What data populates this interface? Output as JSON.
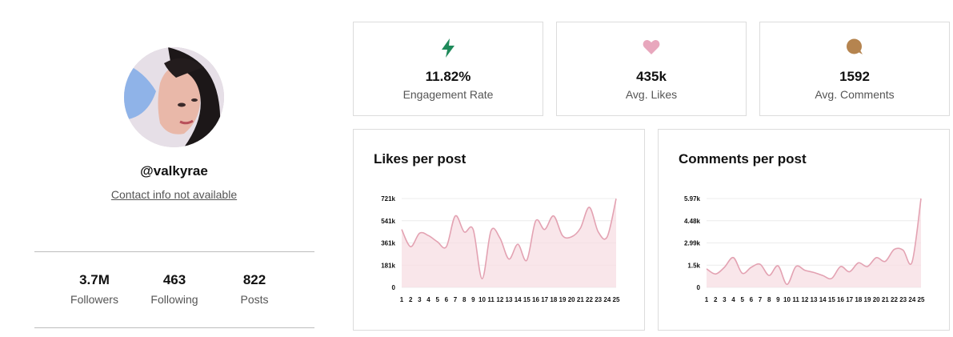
{
  "profile": {
    "handle": "@valkyrae",
    "contact": "Contact info not available",
    "stats": [
      {
        "value": "3.7M",
        "label": "Followers"
      },
      {
        "value": "463",
        "label": "Following"
      },
      {
        "value": "822",
        "label": "Posts"
      }
    ]
  },
  "metrics": [
    {
      "icon": "lightning-icon",
      "color": "#1e8a5a",
      "value": "11.82%",
      "label": "Engagement Rate"
    },
    {
      "icon": "heart-icon",
      "color": "#e8a7bd",
      "value": "435k",
      "label": "Avg. Likes"
    },
    {
      "icon": "comment-bubble-icon",
      "color": "#b5844f",
      "value": "1592",
      "label": "Avg. Comments"
    }
  ],
  "chart_data": [
    {
      "type": "area",
      "title": "Likes per post",
      "x": [
        1,
        2,
        3,
        4,
        5,
        6,
        7,
        8,
        9,
        10,
        11,
        12,
        13,
        14,
        15,
        16,
        17,
        18,
        19,
        20,
        21,
        22,
        23,
        24,
        25
      ],
      "y_ticks": [
        "721k",
        "541k",
        "361k",
        "181k",
        "0"
      ],
      "ylim": [
        0,
        721000
      ],
      "series": [
        {
          "values": [
            470000,
            330000,
            440000,
            420000,
            370000,
            330000,
            580000,
            450000,
            470000,
            70000,
            460000,
            400000,
            230000,
            350000,
            220000,
            540000,
            470000,
            580000,
            420000,
            410000,
            480000,
            650000,
            450000,
            410000,
            720000
          ]
        }
      ],
      "color": "#e3a2b2",
      "fill": "#f7dde3"
    },
    {
      "type": "area",
      "title": "Comments per post",
      "x": [
        1,
        2,
        3,
        4,
        5,
        6,
        7,
        8,
        9,
        10,
        11,
        12,
        13,
        14,
        15,
        16,
        17,
        18,
        19,
        20,
        21,
        22,
        23,
        24,
        25
      ],
      "y_ticks": [
        "5.97k",
        "4.48k",
        "2.99k",
        "1.5k",
        "0"
      ],
      "ylim": [
        0,
        5970
      ],
      "series": [
        {
          "values": [
            1250,
            900,
            1350,
            2000,
            950,
            1350,
            1550,
            800,
            1450,
            200,
            1400,
            1150,
            1000,
            800,
            600,
            1400,
            1050,
            1650,
            1400,
            2000,
            1750,
            2550,
            2500,
            1700,
            5970
          ]
        }
      ],
      "color": "#e3a2b2",
      "fill": "#f7dde3"
    }
  ]
}
